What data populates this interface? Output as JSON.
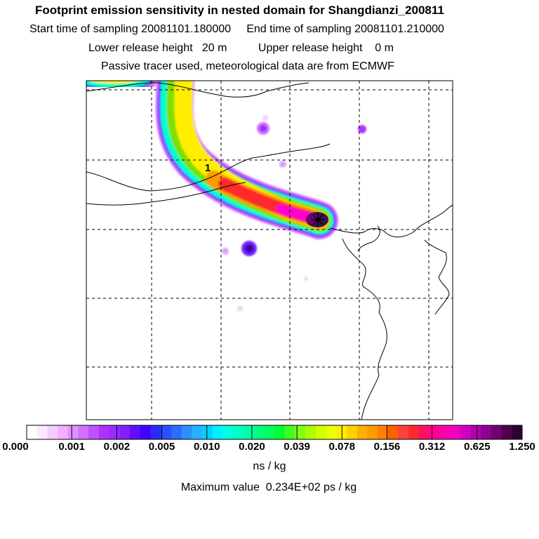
{
  "header": {
    "title": "Footprint emission sensitivity in nested domain for Shangdianzi_200811",
    "sampling_line": "Start time of sampling 20081101.180000     End time of sampling 20081101.210000",
    "height_line": "Lower release height   20 m          Upper release height    0 m",
    "tracer_line": "Passive tracer used, meteorological data are from ECMWF"
  },
  "map": {
    "release_marker_label": "1",
    "colors": {
      "magenta": "#ff00cc",
      "red": "#ff2a2a",
      "orange": "#ff9a00",
      "yellow": "#ffee00",
      "green": "#7fe000",
      "cyan": "#00ffd0",
      "blue": "#2a6cff",
      "purple": "#9a2bff",
      "violet": "#d070ff",
      "dark": "#3a1050"
    }
  },
  "colorbar": {
    "tick_labels": [
      "0.000",
      "0.001",
      "0.002",
      "0.005",
      "0.010",
      "0.020",
      "0.039",
      "0.078",
      "0.156",
      "0.312",
      "0.625",
      "1.250"
    ],
    "units": "ns / kg",
    "colors": [
      "#ffffff",
      "#fce8ff",
      "#f7ccff",
      "#f0b0ff",
      "#e290ff",
      "#d070ff",
      "#c050ff",
      "#b030ff",
      "#9a2bff",
      "#8020ff",
      "#6010ff",
      "#4400ff",
      "#2a2aff",
      "#2a50ff",
      "#2a6cff",
      "#2a90ff",
      "#2ab0ff",
      "#00d0ff",
      "#00f0ff",
      "#00ffe0",
      "#00ffc0",
      "#00ffa0",
      "#00ff80",
      "#00ff60",
      "#00ff30",
      "#40ff20",
      "#80ff10",
      "#aaff00",
      "#d4ff00",
      "#eeff00",
      "#ffee00",
      "#ffd000",
      "#ffb000",
      "#ff9a00",
      "#ff8000",
      "#ff6000",
      "#ff4040",
      "#ff2a2a",
      "#ff1060",
      "#ff0090",
      "#ff00b0",
      "#f000c0",
      "#d000c0",
      "#b000b0",
      "#900090",
      "#700070",
      "#500050",
      "#300030"
    ]
  },
  "footer": {
    "max_value_text": "Maximum value  0.234E+02 ps / kg"
  }
}
